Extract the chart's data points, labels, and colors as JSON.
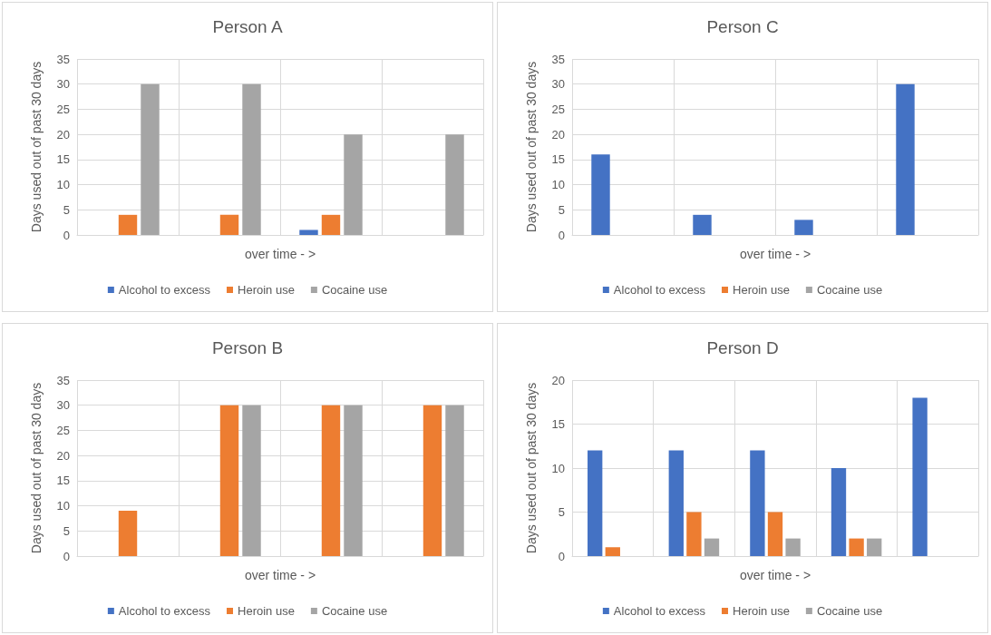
{
  "chart_data": [
    {
      "type": "bar",
      "title": "Person A",
      "xlabel": "over time - >",
      "ylabel": "Days used out of past 30 days",
      "categories": [
        null,
        null,
        null,
        null
      ],
      "series": [
        {
          "name": "Alcohol to excess",
          "color": "#4472c4",
          "values": [
            0,
            0,
            1,
            0
          ]
        },
        {
          "name": "Heroin use",
          "color": "#ed7d31",
          "values": [
            4,
            4,
            4,
            0
          ]
        },
        {
          "name": "Cocaine use",
          "color": "#a5a5a5",
          "values": [
            30,
            30,
            20,
            20
          ]
        }
      ],
      "ylim": [
        0,
        35
      ],
      "yticks": [
        0,
        5,
        10,
        15,
        20,
        25,
        30,
        35
      ],
      "grid": true,
      "legend": "bottom"
    },
    {
      "type": "bar",
      "title": "Person C",
      "xlabel": "over time - >",
      "ylabel": "Days used out of past 30 days",
      "categories": [
        null,
        null,
        null,
        null
      ],
      "series": [
        {
          "name": "Alcohol to excess",
          "color": "#4472c4",
          "values": [
            16,
            4,
            3,
            30
          ]
        },
        {
          "name": "Heroin use",
          "color": "#ed7d31",
          "values": [
            0,
            0,
            0,
            0
          ]
        },
        {
          "name": "Cocaine use",
          "color": "#a5a5a5",
          "values": [
            0,
            0,
            0,
            0
          ]
        }
      ],
      "ylim": [
        0,
        35
      ],
      "yticks": [
        0,
        5,
        10,
        15,
        20,
        25,
        30,
        35
      ],
      "grid": true,
      "legend": "bottom"
    },
    {
      "type": "bar",
      "title": "Person B",
      "xlabel": "over time - >",
      "ylabel": "Days used out of past 30 days",
      "categories": [
        null,
        null,
        null,
        null
      ],
      "series": [
        {
          "name": "Alcohol to excess",
          "color": "#4472c4",
          "values": [
            0,
            0,
            0,
            0
          ]
        },
        {
          "name": "Heroin use",
          "color": "#ed7d31",
          "values": [
            9,
            30,
            30,
            30
          ]
        },
        {
          "name": "Cocaine use",
          "color": "#a5a5a5",
          "values": [
            0,
            30,
            30,
            30
          ]
        }
      ],
      "ylim": [
        0,
        35
      ],
      "yticks": [
        0,
        5,
        10,
        15,
        20,
        25,
        30,
        35
      ],
      "grid": true,
      "legend": "bottom"
    },
    {
      "type": "bar",
      "title": "Person D",
      "xlabel": "over time - >",
      "ylabel": "Days used out of past 30 days",
      "categories": [
        null,
        null,
        null,
        null,
        null
      ],
      "series": [
        {
          "name": "Alcohol to excess",
          "color": "#4472c4",
          "values": [
            12,
            12,
            12,
            10,
            18
          ]
        },
        {
          "name": "Heroin use",
          "color": "#ed7d31",
          "values": [
            1,
            5,
            5,
            2,
            0
          ]
        },
        {
          "name": "Cocaine use",
          "color": "#a5a5a5",
          "values": [
            0,
            2,
            2,
            2,
            0
          ]
        }
      ],
      "ylim": [
        0,
        20
      ],
      "yticks": [
        0,
        5,
        10,
        15,
        20
      ],
      "grid": true,
      "legend": "bottom"
    }
  ]
}
